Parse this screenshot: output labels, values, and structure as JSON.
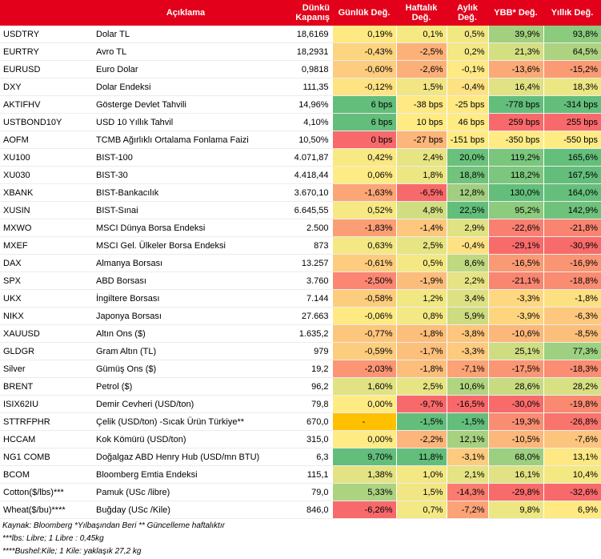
{
  "header": {
    "description": "Açıklama",
    "close": "Dünkü\nKapanış",
    "daily": "Günlük Değ.",
    "weekly": "Haftalık\nDeğ.",
    "monthly": "Aylık\nDeğ.",
    "ytd": "YBB* Değ.",
    "yearly": "Yıllık Değ."
  },
  "colors": {
    "header_bg": "#e2001a",
    "best": "#63be7b",
    "mid": "#ffeb84",
    "worst": "#f8696b",
    "flag": "#ffc000"
  },
  "rows": [
    {
      "code": "USDTRY",
      "desc": "Dolar TL",
      "close": "18,6169",
      "d": "0,19%",
      "w": "0,1%",
      "m": "0,5%",
      "y": "39,9%",
      "yy": "93,8%",
      "dc": "#fee983",
      "wc": "#f6e984",
      "mc": "#f2e883",
      "yc": "#a2d07f",
      "yyc": "#8acb7e"
    },
    {
      "code": "EURTRY",
      "desc": "Avro TL",
      "close": "18,2931",
      "d": "-0,43%",
      "w": "-2,5%",
      "m": "0,2%",
      "y": "21,3%",
      "yy": "64,5%",
      "dc": "#fdd47f",
      "wc": "#fcb179",
      "mc": "#f3e883",
      "yc": "#d4df82",
      "yyc": "#add381"
    },
    {
      "code": "EURUSD",
      "desc": "Euro Dolar",
      "close": "0,9818",
      "d": "-0,60%",
      "w": "-2,6%",
      "m": "-0,1%",
      "y": "-13,6%",
      "yy": "-15,2%",
      "dc": "#fdcc7e",
      "wc": "#fcaf78",
      "mc": "#fee983",
      "yc": "#fbaa77",
      "yyc": "#fa9b74"
    },
    {
      "code": "DXY",
      "desc": "Dolar Endeksi",
      "close": "111,35",
      "d": "-0,12%",
      "w": "1,5%",
      "m": "-0,4%",
      "y": "16,4%",
      "yy": "18,3%",
      "dc": "#fee382",
      "wc": "#f1e683",
      "mc": "#fde283",
      "yc": "#e0e283",
      "yyc": "#ece683"
    },
    {
      "code": "AKTIFHV",
      "desc": "Gösterge Devlet Tahvili",
      "close": "14,96%",
      "d": "6 bps",
      "w": "-38 bps",
      "m": "-25 bps",
      "y": "-778 bps",
      "yy": "-314 bps",
      "dc": "#63be7b",
      "wc": "#fee983",
      "mc": "#fee983",
      "yc": "#63be7b",
      "yyc": "#63be7b"
    },
    {
      "code": "USTBOND10Y",
      "desc": "USD 10 Yıllık Tahvil",
      "close": "4,10%",
      "d": "6 bps",
      "w": "10 bps",
      "m": "46 bps",
      "y": "259 bps",
      "yy": "255 bps",
      "dc": "#63be7b",
      "wc": "#ffeb84",
      "mc": "#ffeb84",
      "yc": "#f8696b",
      "yyc": "#f8696b"
    },
    {
      "code": "AOFM",
      "desc": "TCMB Ağırlıklı Ortalama Fonlama Faizi",
      "close": "10,50%",
      "d": "0 bps",
      "w": "-27 bps",
      "m": "-151 bps",
      "y": "-350 bps",
      "yy": "-550 bps",
      "dc": "#f8696b",
      "wc": "#fcb57a",
      "mc": "#ffeb84",
      "yc": "#ffeb84",
      "yyc": "#ffeb84"
    },
    {
      "code": "XU100",
      "desc": "BIST-100",
      "close": "4.071,87",
      "d": "0,42%",
      "w": "2,4%",
      "m": "20,0%",
      "y": "119,2%",
      "yy": "165,6%",
      "dc": "#f9e983",
      "wc": "#e7e483",
      "mc": "#6ac17c",
      "yc": "#7bc67d",
      "yyc": "#64bf7b"
    },
    {
      "code": "XU030",
      "desc": "BIST-30",
      "close": "4.418,44",
      "d": "0,06%",
      "w": "1,8%",
      "m": "18,8%",
      "y": "118,2%",
      "yy": "167,5%",
      "dc": "#ffeb84",
      "wc": "#ece683",
      "mc": "#72c37c",
      "yc": "#7cc67d",
      "yyc": "#63be7b"
    },
    {
      "code": "XBANK",
      "desc": "BIST-Bankacılık",
      "close": "3.670,10",
      "d": "-1,63%",
      "w": "-6,5%",
      "m": "12,8%",
      "y": "130,0%",
      "yy": "164,0%",
      "dc": "#fca577",
      "wc": "#f8696b",
      "mc": "#a1cf7f",
      "yc": "#63be7b",
      "yyc": "#65bf7b"
    },
    {
      "code": "XUSIN",
      "desc": "BIST-Sınai",
      "close": "6.645,55",
      "d": "0,52%",
      "w": "4,8%",
      "m": "22,5%",
      "y": "95,2%",
      "yy": "142,9%",
      "dc": "#f6e883",
      "wc": "#d0dd81",
      "mc": "#63be7b",
      "yc": "#8dcb7e",
      "yyc": "#6fc27c"
    },
    {
      "code": "MXWO",
      "desc": "MSCI Dünya Borsa Endeksi",
      "close": "2.500",
      "d": "-1,83%",
      "w": "-1,4%",
      "m": "2,9%",
      "y": "-22,6%",
      "yy": "-21,8%",
      "dc": "#fc9e75",
      "wc": "#fdc77d",
      "mc": "#e1e283",
      "yc": "#f97f70",
      "yyc": "#f98470"
    },
    {
      "code": "MXEF",
      "desc": "MSCI Gel. Ülkeler Borsa Endeksi",
      "close": "873",
      "d": "0,63%",
      "w": "2,5%",
      "m": "-0,4%",
      "y": "-29,1%",
      "yy": "-30,9%",
      "dc": "#f3e883",
      "wc": "#e6e483",
      "mc": "#fde283",
      "yc": "#f86b6b",
      "yyc": "#f86b6b"
    },
    {
      "code": "DAX",
      "desc": "Almanya Borsası",
      "close": "13.257",
      "d": "-0,61%",
      "w": "0,5%",
      "m": "8,6%",
      "y": "-16,5%",
      "yy": "-16,9%",
      "dc": "#fdcc7e",
      "wc": "#f4e883",
      "mc": "#bfd981",
      "yc": "#fa9a74",
      "yyc": "#fa9573"
    },
    {
      "code": "SPX",
      "desc": "ABD Borsası",
      "close": "3.760",
      "d": "-2,50%",
      "w": "-1,9%",
      "m": "2,2%",
      "y": "-21,1%",
      "yy": "-18,8%",
      "dc": "#fb8772",
      "wc": "#fcbd7b",
      "mc": "#e5e383",
      "yc": "#f98670",
      "yyc": "#fa8c72"
    },
    {
      "code": "UKX",
      "desc": "İngiltere Borsası",
      "close": "7.144",
      "d": "-0,58%",
      "w": "1,2%",
      "m": "3,4%",
      "y": "-3,3%",
      "yy": "-1,8%",
      "dc": "#fdcd7e",
      "wc": "#f2e883",
      "mc": "#dee183",
      "yc": "#fed880",
      "yyc": "#fde081"
    },
    {
      "code": "NIKX",
      "desc": "Japonya Borsası",
      "close": "27.663",
      "d": "-0,06%",
      "w": "0,8%",
      "m": "5,9%",
      "y": "-3,9%",
      "yy": "-6,3%",
      "dc": "#fee983",
      "wc": "#f3e883",
      "mc": "#cedc81",
      "yc": "#fed57f",
      "yyc": "#fdc87d"
    },
    {
      "code": "XAUUSD",
      "desc": "Altın Ons ($)",
      "close": "1.635,2",
      "d": "-0,77%",
      "w": "-1,8%",
      "m": "-3,8%",
      "y": "-10,6%",
      "yy": "-8,5%",
      "dc": "#fdc67d",
      "wc": "#fcbe7b",
      "mc": "#fdc57d",
      "yc": "#fcb77a",
      "yyc": "#fcbe7b"
    },
    {
      "code": "GLDGR",
      "desc": "Gram Altın (TL)",
      "close": "979",
      "d": "-0,59%",
      "w": "-1,7%",
      "m": "-3,3%",
      "y": "25,1%",
      "yy": "77,3%",
      "dc": "#fdcd7e",
      "wc": "#fcbf7c",
      "mc": "#fdca7e",
      "yc": "#cfdc81",
      "yyc": "#9dd080"
    },
    {
      "code": "Silver",
      "desc": "Gümüş Ons ($)",
      "close": "19,2",
      "d": "-2,03%",
      "w": "-1,8%",
      "m": "-7,1%",
      "y": "-17,5%",
      "yy": "-18,3%",
      "dc": "#fc9574",
      "wc": "#fcbe7b",
      "mc": "#fba376",
      "yc": "#fa9673",
      "yyc": "#fa8d72"
    },
    {
      "code": "BRENT",
      "desc": "Petrol ($)",
      "close": "96,2",
      "d": "1,60%",
      "w": "2,5%",
      "m": "10,6%",
      "y": "28,6%",
      "yy": "28,2%",
      "dc": "#e1e283",
      "wc": "#e6e483",
      "mc": "#b0d580",
      "yc": "#c8db81",
      "yyc": "#d7e082"
    },
    {
      "code": "ISIX62IU",
      "desc": "Demir Cevheri (USD/ton)",
      "close": "79,8",
      "d": "0,00%",
      "w": "-9,7%",
      "m": "-16,5%",
      "y": "-30,0%",
      "yy": "-19,8%",
      "dc": "#ffeb84",
      "wc": "#f8696b",
      "mc": "#f8696b",
      "yc": "#f86b6b",
      "yyc": "#fa8971"
    },
    {
      "code": "STTRFPHR",
      "desc": "Çelik (USD/ton) -Sıcak Ürün Türkiye**",
      "close": "670,0",
      "d": "-",
      "w": "-1,5%",
      "m": "-1,5%",
      "y": "-19,3%",
      "yy": "-26,8%",
      "dc": "#ffc000",
      "wc": "#63be7b",
      "mc": "#63be7b",
      "yc": "#f98d72",
      "yyc": "#f8756d"
    },
    {
      "code": "HCCAM",
      "desc": "Kok Kömürü (USD/ton)",
      "close": "315,0",
      "d": "0,00%",
      "w": "-2,2%",
      "m": "12,1%",
      "y": "-10,5%",
      "yy": "-7,6%",
      "dc": "#ffeb84",
      "wc": "#fcb57a",
      "mc": "#a7d17f",
      "yc": "#fcb77a",
      "yyc": "#fdc47d"
    },
    {
      "code": "NG1 COMB",
      "desc": "Doğalgaz ABD Henry Hub (USD/mn BTU)",
      "close": "6,3",
      "d": "9,70%",
      "w": "11,8%",
      "m": "-3,1%",
      "y": "68,0%",
      "yy": "13,1%",
      "dc": "#63be7b",
      "wc": "#63be7b",
      "mc": "#fdcb7e",
      "yc": "#9ccf7f",
      "yyc": "#fde883"
    },
    {
      "code": "BCOM",
      "desc": "Bloomberg Emtia Endeksi",
      "close": "115,1",
      "d": "1,38%",
      "w": "1,0%",
      "m": "2,1%",
      "y": "16,1%",
      "yy": "10,4%",
      "dc": "#e4e383",
      "wc": "#f3e883",
      "mc": "#e5e383",
      "yc": "#e1e283",
      "yyc": "#f4e883"
    },
    {
      "code": "Cotton($/lbs)***",
      "desc": "Pamuk (USc /libre)",
      "close": "79,0",
      "d": "5,33%",
      "w": "1,5%",
      "m": "-14,3%",
      "y": "-29,8%",
      "yy": "-32,6%",
      "dc": "#abd380",
      "wc": "#f1e683",
      "mc": "#f97c6f",
      "yc": "#f86b6b",
      "yyc": "#f8696b"
    },
    {
      "code": "Wheat($/bu)****",
      "desc": "Buğday (USc /Kile)",
      "close": "846,0",
      "d": "-6,26%",
      "w": "0,7%",
      "m": "-7,2%",
      "y": "9,8%",
      "yy": "6,9%",
      "dc": "#f8696b",
      "wc": "#f3e883",
      "mc": "#fba276",
      "yc": "#ede783",
      "yyc": "#fee983"
    }
  ],
  "footer": {
    "line1": "Kaynak: Bloomberg *Yılbaşından Beri  ** Güncelleme haftalıktır",
    "line2": "***lbs: Libre; 1 Libre : 0,45kg",
    "line3": "****Bushel:Kile; 1 Kile: yaklaşık 27,2 kg"
  }
}
